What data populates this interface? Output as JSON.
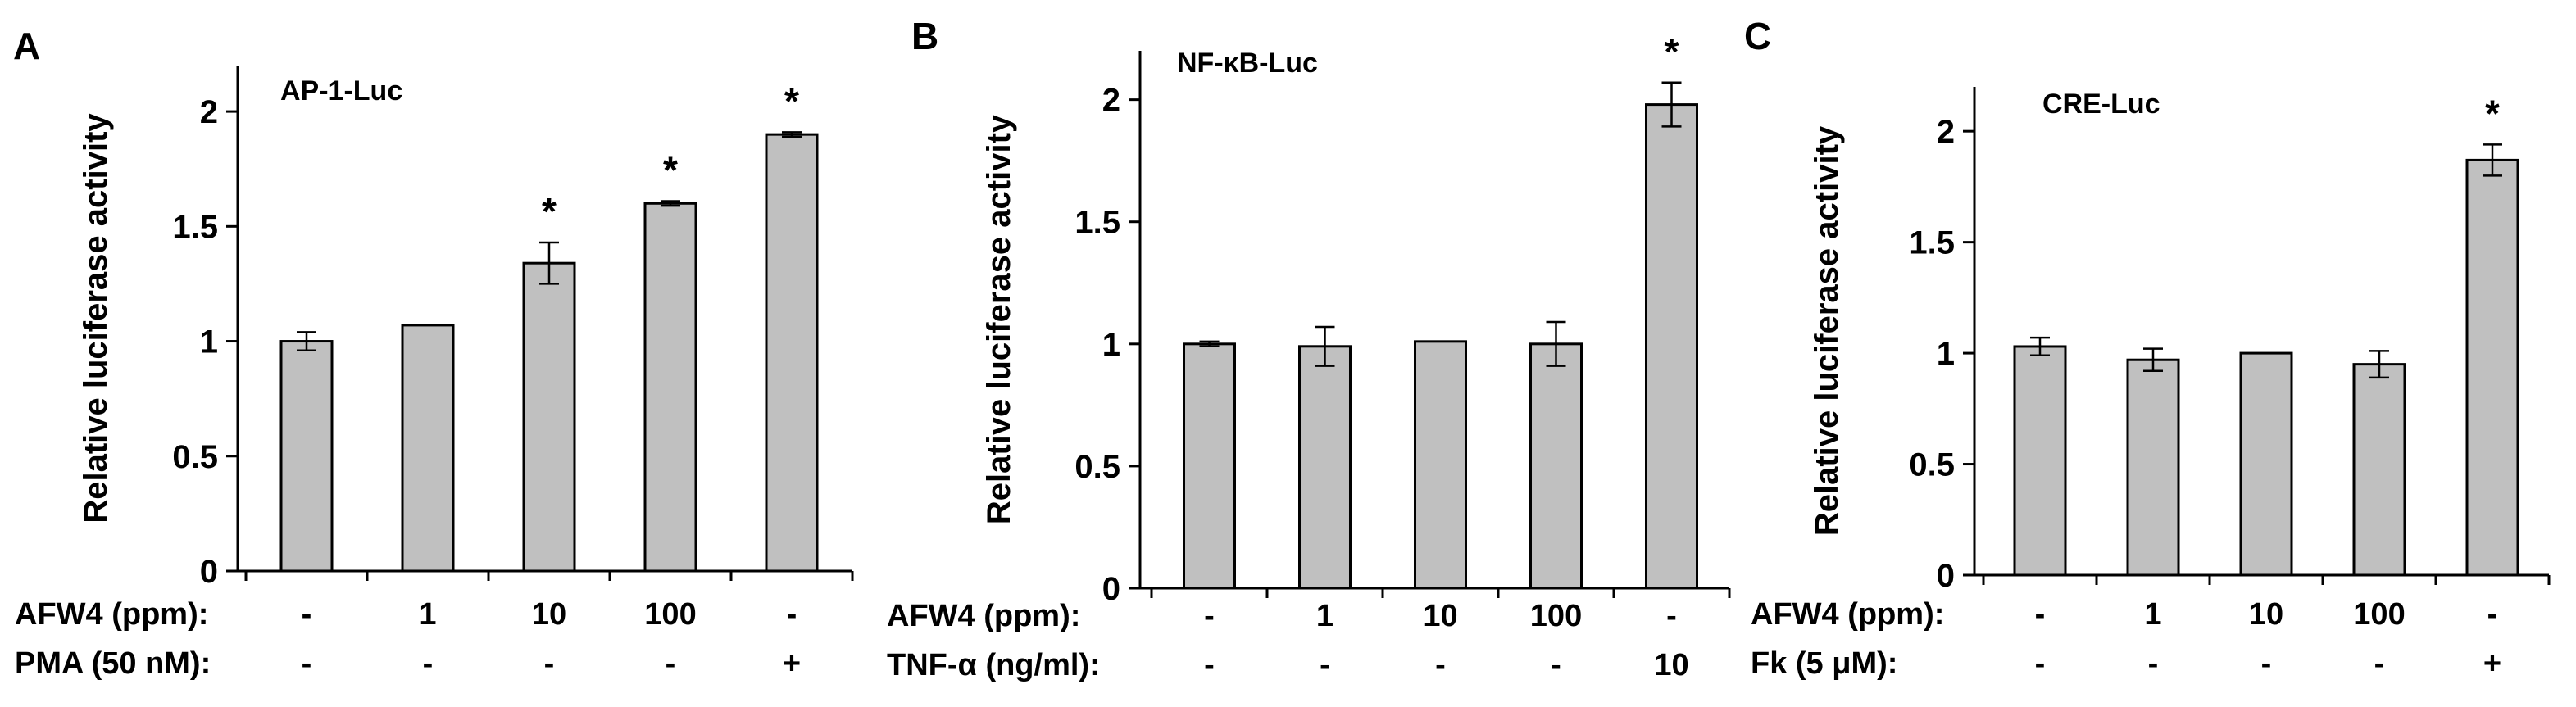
{
  "chart_data": [
    {
      "type": "bar",
      "panel_letter": "A",
      "title": "AP-1-Luc",
      "ylabel": "Relative luciferase activity",
      "ylim": [
        0,
        2.2
      ],
      "yticks": [
        0,
        0.5,
        1,
        1.5,
        2
      ],
      "ytick_labels": [
        "0",
        "0.5",
        "1",
        "1.5",
        "2"
      ],
      "values": [
        1.0,
        1.07,
        1.34,
        1.6,
        1.9
      ],
      "errors": [
        0.04,
        0.0,
        0.09,
        0.01,
        0.01
      ],
      "significance": [
        "",
        "",
        "*",
        "*",
        "*"
      ],
      "bar_color": "#c0c0c0",
      "condition_rows": [
        {
          "label": "AFW4 (ppm):",
          "values": [
            "-",
            "1",
            "10",
            "100",
            "-"
          ]
        },
        {
          "label": "PMA (50 nM):",
          "values": [
            "-",
            "-",
            "-",
            "-",
            "+"
          ]
        }
      ]
    },
    {
      "type": "bar",
      "panel_letter": "B",
      "title": "NF-κB-Luc",
      "ylabel": "Relative luciferase activity",
      "ylim": [
        0,
        2.2
      ],
      "yticks": [
        0,
        0.5,
        1,
        1.5,
        2
      ],
      "ytick_labels": [
        "0",
        "0.5",
        "1",
        "1.5",
        "2"
      ],
      "values": [
        1.0,
        0.99,
        1.01,
        1.0,
        1.98
      ],
      "errors": [
        0.01,
        0.08,
        0.0,
        0.09,
        0.09
      ],
      "significance": [
        "",
        "",
        "",
        "",
        "*"
      ],
      "bar_color": "#c0c0c0",
      "condition_rows": [
        {
          "label": "AFW4 (ppm):",
          "values": [
            "-",
            "1",
            "10",
            "100",
            "-"
          ]
        },
        {
          "label": "TNF-α (ng/ml):",
          "values": [
            "-",
            "-",
            "-",
            "-",
            "10"
          ]
        }
      ]
    },
    {
      "type": "bar",
      "panel_letter": "C",
      "title": "CRE-Luc",
      "ylabel": "Relative luciferase activity",
      "ylim": [
        0,
        2.2
      ],
      "yticks": [
        0,
        0.5,
        1,
        1.5,
        2
      ],
      "ytick_labels": [
        "0",
        "0.5",
        "1",
        "1.5",
        "2"
      ],
      "values": [
        1.03,
        0.97,
        1.0,
        0.95,
        1.87
      ],
      "errors": [
        0.04,
        0.05,
        0.0,
        0.06,
        0.07
      ],
      "significance": [
        "",
        "",
        "",
        "",
        "*"
      ],
      "bar_color": "#c0c0c0",
      "condition_rows": [
        {
          "label": "AFW4 (ppm):",
          "values": [
            "-",
            "1",
            "10",
            "100",
            "-"
          ]
        },
        {
          "label": "Fk (5 μM):",
          "values": [
            "-",
            "-",
            "-",
            "-",
            "+"
          ]
        }
      ]
    }
  ]
}
